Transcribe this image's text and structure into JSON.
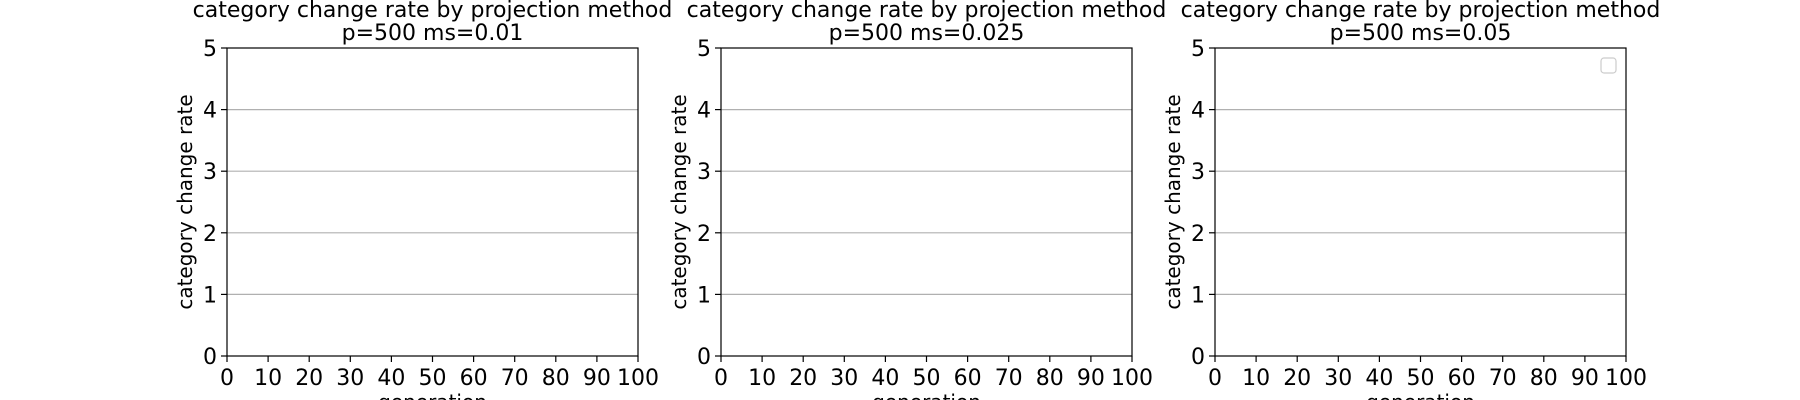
{
  "chart_data": [
    {
      "type": "line",
      "title": "category change rate by projection method\np=500 ms=0.01",
      "xlabel": "generation",
      "ylabel": "category change rate",
      "xlim": [
        0,
        100
      ],
      "ylim": [
        0,
        5
      ],
      "xticks": [
        0,
        10,
        20,
        30,
        40,
        50,
        60,
        70,
        80,
        90,
        100
      ],
      "yticks": [
        0,
        1,
        2,
        3,
        4,
        5
      ],
      "grid": "y",
      "legend": "none",
      "series": []
    },
    {
      "type": "line",
      "title": "category change rate by projection method\np=500 ms=0.025",
      "xlabel": "generation",
      "ylabel": "category change rate",
      "xlim": [
        0,
        100
      ],
      "ylim": [
        0,
        5
      ],
      "xticks": [
        0,
        10,
        20,
        30,
        40,
        50,
        60,
        70,
        80,
        90,
        100
      ],
      "yticks": [
        0,
        1,
        2,
        3,
        4,
        5
      ],
      "grid": "y",
      "legend": "none",
      "series": []
    },
    {
      "type": "line",
      "title": "category change rate by projection method\np=500 ms=0.05",
      "xlabel": "generation",
      "ylabel": "category change rate",
      "xlim": [
        0,
        100
      ],
      "ylim": [
        0,
        5
      ],
      "xticks": [
        0,
        10,
        20,
        30,
        40,
        50,
        60,
        70,
        80,
        90,
        100
      ],
      "yticks": [
        0,
        1,
        2,
        3,
        4,
        5
      ],
      "grid": "y",
      "legend": "top-right (empty)",
      "series": []
    }
  ],
  "colors": {
    "grid": "#b0b0b0",
    "axis": "#000000",
    "legend_border": "#cccccc"
  }
}
